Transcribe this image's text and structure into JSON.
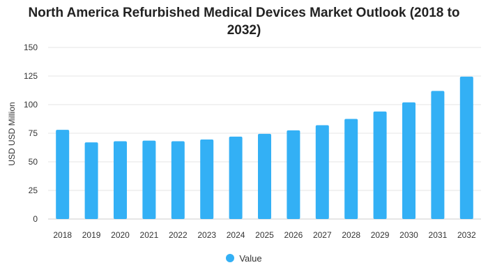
{
  "colors": {
    "bar": "#33b0f5",
    "grid": "#e6e6e6",
    "text": "#333333"
  },
  "chart_data": {
    "type": "bar",
    "title_lines": [
      "North America Refurbished Medical Devices Market Outlook (2018 to",
      "2032)"
    ],
    "ylabel": "USD USD Million",
    "xlabel": "",
    "categories": [
      "2018",
      "2019",
      "2020",
      "2021",
      "2022",
      "2023",
      "2024",
      "2025",
      "2026",
      "2027",
      "2028",
      "2029",
      "2030",
      "2031",
      "2032"
    ],
    "series": [
      {
        "name": "Value",
        "values": [
          78,
          67,
          68,
          68.5,
          68,
          69.5,
          72,
          74.5,
          77.5,
          82,
          87.5,
          94,
          102,
          112,
          124.5
        ]
      }
    ],
    "ylim": [
      0,
      150
    ],
    "yticks": [
      0,
      25,
      50,
      75,
      100,
      125,
      150
    ],
    "grid": true,
    "legend": "bottom-center"
  }
}
